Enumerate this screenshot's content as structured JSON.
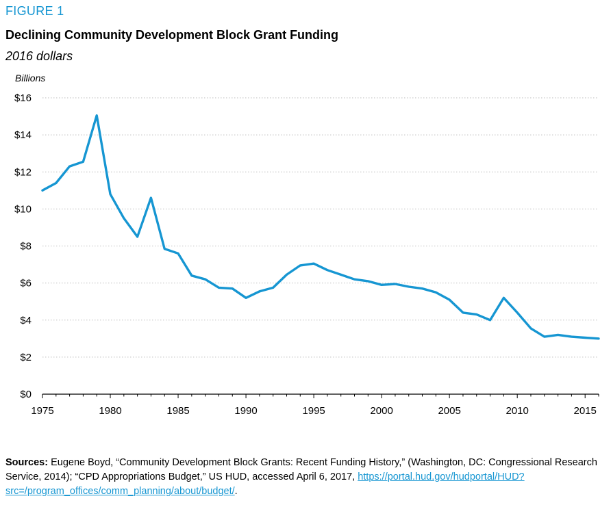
{
  "figure": {
    "label": "FIGURE 1",
    "title": "Declining Community Development Block Grant Funding",
    "subtitle": "2016 dollars"
  },
  "sources": {
    "label": "Sources:",
    "text": " Eugene Boyd, “Community Development Block Grants: Recent Funding History,” (Washington, DC: Congressional Research Service, 2014); “CPD Appropriations Budget,” US HUD, accessed April 6, 2017, ",
    "link": "https://portal.hud.gov/hudportal/HUD?src=/program_offices/comm_planning/about/budget/",
    "end": "."
  },
  "chart_data": {
    "type": "line",
    "title": "Declining Community Development Block Grant Funding",
    "subtitle": "2016 dollars",
    "ylabel": "Billions",
    "xlabel": "",
    "x_ticks": [
      1975,
      1980,
      1985,
      1990,
      1995,
      2000,
      2005,
      2010,
      2015
    ],
    "y_ticks": [
      0,
      2,
      4,
      6,
      8,
      10,
      12,
      14,
      16
    ],
    "y_tick_labels": [
      "$0",
      "$2",
      "$4",
      "$6",
      "$8",
      "$10",
      "$12",
      "$14",
      "$16"
    ],
    "xlim": [
      1975,
      2016
    ],
    "ylim": [
      0,
      16
    ],
    "grid": "horizontal-dotted",
    "color": "#1696d2",
    "series": [
      {
        "x": [
          1975,
          1976,
          1977,
          1978,
          1979,
          1980,
          1981,
          1982,
          1983,
          1984,
          1985,
          1986,
          1987,
          1988,
          1989,
          1990,
          1991,
          1992,
          1993,
          1994,
          1995,
          1996,
          1997,
          1998,
          1999,
          2000,
          2001,
          2002,
          2003,
          2004,
          2005,
          2006,
          2007,
          2008,
          2009,
          2010,
          2011,
          2012,
          2013,
          2014,
          2015,
          2016
        ],
        "values": [
          11.0,
          11.4,
          12.3,
          12.55,
          15.05,
          10.8,
          9.5,
          8.5,
          10.6,
          7.85,
          7.6,
          6.4,
          6.2,
          5.75,
          5.7,
          5.2,
          5.55,
          5.75,
          6.45,
          6.95,
          7.05,
          6.7,
          6.45,
          6.2,
          6.1,
          5.9,
          5.95,
          5.8,
          5.7,
          5.5,
          5.1,
          4.4,
          4.3,
          4.0,
          5.2,
          4.4,
          3.55,
          3.1,
          3.2,
          3.1,
          3.05,
          3.0
        ]
      }
    ]
  }
}
